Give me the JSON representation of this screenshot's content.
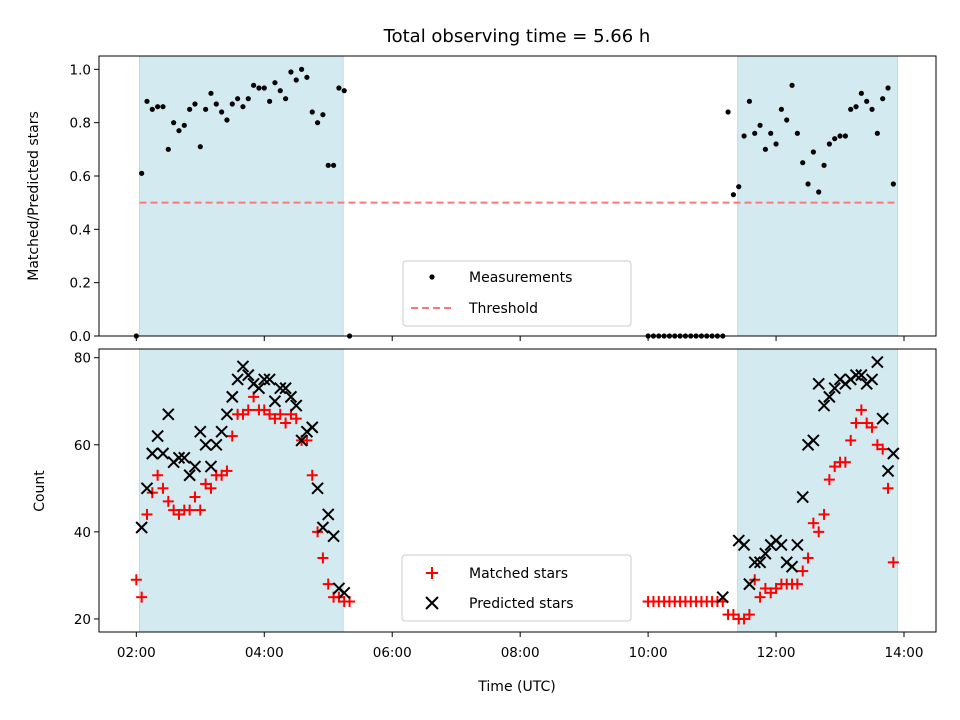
{
  "figure": {
    "title": "Total observing time = 5.66 h"
  },
  "chart_data": [
    {
      "type": "scatter",
      "panel": "top",
      "title": "Total observing time = 5.66 h",
      "xlabel": "",
      "ylabel": "Matched/Predicted stars",
      "xlim": [
        "01:25",
        "14:30"
      ],
      "ylim": [
        0,
        1.05
      ],
      "yticks": [
        0.0,
        0.2,
        0.4,
        0.6,
        0.8,
        1.0
      ],
      "ytick_labels": [
        "0.0",
        "0.2",
        "0.4",
        "0.6",
        "0.8",
        "1.0"
      ],
      "shaded_intervals": [
        [
          "02:03",
          "05:14"
        ],
        [
          "11:24",
          "13:54"
        ]
      ],
      "shade_color": "#d3eaf1",
      "legend": {
        "position": "lower-center",
        "entries": [
          "Measurements",
          "Threshold"
        ]
      },
      "threshold": {
        "name": "Threshold",
        "value": 0.5,
        "x_range": [
          "02:03",
          "13:54"
        ],
        "color": "#ff7777",
        "style": "dashed"
      },
      "series": [
        {
          "name": "Measurements",
          "marker": "dot",
          "color": "#000000",
          "points": [
            [
              "02:00",
              0.0
            ],
            [
              "02:05",
              0.61
            ],
            [
              "02:10",
              0.88
            ],
            [
              "02:15",
              0.85
            ],
            [
              "02:20",
              0.86
            ],
            [
              "02:25",
              0.86
            ],
            [
              "02:30",
              0.7
            ],
            [
              "02:35",
              0.8
            ],
            [
              "02:40",
              0.77
            ],
            [
              "02:45",
              0.79
            ],
            [
              "02:50",
              0.85
            ],
            [
              "02:55",
              0.87
            ],
            [
              "03:00",
              0.71
            ],
            [
              "03:05",
              0.85
            ],
            [
              "03:10",
              0.91
            ],
            [
              "03:15",
              0.87
            ],
            [
              "03:20",
              0.84
            ],
            [
              "03:25",
              0.81
            ],
            [
              "03:30",
              0.87
            ],
            [
              "03:35",
              0.89
            ],
            [
              "03:40",
              0.86
            ],
            [
              "03:45",
              0.89
            ],
            [
              "03:50",
              0.94
            ],
            [
              "03:55",
              0.93
            ],
            [
              "04:00",
              0.93
            ],
            [
              "04:05",
              0.88
            ],
            [
              "04:10",
              0.95
            ],
            [
              "04:15",
              0.92
            ],
            [
              "04:20",
              0.89
            ],
            [
              "04:25",
              0.99
            ],
            [
              "04:30",
              0.96
            ],
            [
              "04:35",
              1.0
            ],
            [
              "04:40",
              0.97
            ],
            [
              "04:45",
              0.84
            ],
            [
              "04:50",
              0.8
            ],
            [
              "04:55",
              0.83
            ],
            [
              "05:00",
              0.64
            ],
            [
              "05:05",
              0.64
            ],
            [
              "05:10",
              0.93
            ],
            [
              "05:15",
              0.92
            ],
            [
              "05:20",
              0.0
            ],
            [
              "10:00",
              0.0
            ],
            [
              "10:05",
              0.0
            ],
            [
              "10:10",
              0.0
            ],
            [
              "10:15",
              0.0
            ],
            [
              "10:20",
              0.0
            ],
            [
              "10:25",
              0.0
            ],
            [
              "10:30",
              0.0
            ],
            [
              "10:35",
              0.0
            ],
            [
              "10:40",
              0.0
            ],
            [
              "10:45",
              0.0
            ],
            [
              "10:50",
              0.0
            ],
            [
              "10:55",
              0.0
            ],
            [
              "11:00",
              0.0
            ],
            [
              "11:05",
              0.0
            ],
            [
              "11:10",
              0.0
            ],
            [
              "11:15",
              0.84
            ],
            [
              "11:20",
              0.53
            ],
            [
              "11:25",
              0.56
            ],
            [
              "11:30",
              0.75
            ],
            [
              "11:35",
              0.88
            ],
            [
              "11:40",
              0.76
            ],
            [
              "11:45",
              0.79
            ],
            [
              "11:50",
              0.7
            ],
            [
              "11:55",
              0.76
            ],
            [
              "12:00",
              0.72
            ],
            [
              "12:05",
              0.85
            ],
            [
              "12:10",
              0.81
            ],
            [
              "12:15",
              0.94
            ],
            [
              "12:20",
              0.76
            ],
            [
              "12:25",
              0.65
            ],
            [
              "12:30",
              0.57
            ],
            [
              "12:35",
              0.69
            ],
            [
              "12:40",
              0.54
            ],
            [
              "12:45",
              0.64
            ],
            [
              "12:50",
              0.72
            ],
            [
              "12:55",
              0.74
            ],
            [
              "13:00",
              0.75
            ],
            [
              "13:05",
              0.75
            ],
            [
              "13:10",
              0.85
            ],
            [
              "13:15",
              0.86
            ],
            [
              "13:20",
              0.91
            ],
            [
              "13:25",
              0.88
            ],
            [
              "13:30",
              0.85
            ],
            [
              "13:35",
              0.76
            ],
            [
              "13:40",
              0.89
            ],
            [
              "13:45",
              0.93
            ],
            [
              "13:50",
              0.57
            ]
          ]
        }
      ]
    },
    {
      "type": "scatter",
      "panel": "bottom",
      "title": "",
      "xlabel": "Time (UTC)",
      "ylabel": "Count",
      "xlim": [
        "01:25",
        "14:30"
      ],
      "ylim": [
        17,
        82
      ],
      "yticks": [
        20,
        40,
        60,
        80
      ],
      "ytick_labels": [
        "20",
        "40",
        "60",
        "80"
      ],
      "xticks": [
        "02:00",
        "04:00",
        "06:00",
        "08:00",
        "10:00",
        "12:00",
        "14:00"
      ],
      "xtick_labels": [
        "02:00",
        "04:00",
        "06:00",
        "08:00",
        "10:00",
        "12:00",
        "14:00"
      ],
      "shaded_intervals": [
        [
          "02:03",
          "05:14"
        ],
        [
          "11:24",
          "13:54"
        ]
      ],
      "shade_color": "#d3eaf1",
      "legend": {
        "position": "lower-center",
        "entries": [
          "Matched stars",
          "Predicted stars"
        ]
      },
      "series": [
        {
          "name": "Matched stars",
          "marker": "plus",
          "color": "#ff0000",
          "points": [
            [
              "02:00",
              29
            ],
            [
              "02:05",
              25
            ],
            [
              "02:10",
              44
            ],
            [
              "02:15",
              49
            ],
            [
              "02:20",
              53
            ],
            [
              "02:25",
              50
            ],
            [
              "02:30",
              47
            ],
            [
              "02:35",
              45
            ],
            [
              "02:40",
              44
            ],
            [
              "02:45",
              45
            ],
            [
              "02:50",
              45
            ],
            [
              "02:55",
              48
            ],
            [
              "03:00",
              45
            ],
            [
              "03:05",
              51
            ],
            [
              "03:10",
              50
            ],
            [
              "03:15",
              53
            ],
            [
              "03:20",
              53
            ],
            [
              "03:25",
              54
            ],
            [
              "03:30",
              62
            ],
            [
              "03:35",
              67
            ],
            [
              "03:40",
              67
            ],
            [
              "03:45",
              68
            ],
            [
              "03:50",
              71
            ],
            [
              "03:55",
              68
            ],
            [
              "04:00",
              68
            ],
            [
              "04:05",
              67
            ],
            [
              "04:10",
              66
            ],
            [
              "04:15",
              67
            ],
            [
              "04:20",
              65
            ],
            [
              "04:25",
              67
            ],
            [
              "04:30",
              66
            ],
            [
              "04:35",
              61
            ],
            [
              "04:40",
              61
            ],
            [
              "04:45",
              53
            ],
            [
              "04:50",
              40
            ],
            [
              "04:55",
              34
            ],
            [
              "05:00",
              28
            ],
            [
              "05:05",
              25
            ],
            [
              "05:10",
              25
            ],
            [
              "05:15",
              24
            ],
            [
              "05:20",
              24
            ],
            [
              "10:00",
              24
            ],
            [
              "10:05",
              24
            ],
            [
              "10:10",
              24
            ],
            [
              "10:15",
              24
            ],
            [
              "10:20",
              24
            ],
            [
              "10:25",
              24
            ],
            [
              "10:30",
              24
            ],
            [
              "10:35",
              24
            ],
            [
              "10:40",
              24
            ],
            [
              "10:45",
              24
            ],
            [
              "10:50",
              24
            ],
            [
              "10:55",
              24
            ],
            [
              "11:00",
              24
            ],
            [
              "11:05",
              24
            ],
            [
              "11:10",
              24
            ],
            [
              "11:15",
              21
            ],
            [
              "11:20",
              21
            ],
            [
              "11:25",
              20
            ],
            [
              "11:30",
              20
            ],
            [
              "11:35",
              21
            ],
            [
              "11:40",
              29
            ],
            [
              "11:45",
              25
            ],
            [
              "11:50",
              27
            ],
            [
              "11:55",
              26
            ],
            [
              "12:00",
              27
            ],
            [
              "12:05",
              28
            ],
            [
              "12:10",
              28
            ],
            [
              "12:15",
              28
            ],
            [
              "12:20",
              28
            ],
            [
              "12:25",
              31
            ],
            [
              "12:30",
              34
            ],
            [
              "12:35",
              42
            ],
            [
              "12:40",
              40
            ],
            [
              "12:45",
              44
            ],
            [
              "12:50",
              52
            ],
            [
              "12:55",
              55
            ],
            [
              "13:00",
              56
            ],
            [
              "13:05",
              56
            ],
            [
              "13:10",
              61
            ],
            [
              "13:15",
              65
            ],
            [
              "13:20",
              68
            ],
            [
              "13:25",
              65
            ],
            [
              "13:30",
              64
            ],
            [
              "13:35",
              60
            ],
            [
              "13:40",
              59
            ],
            [
              "13:45",
              50
            ],
            [
              "13:50",
              33
            ]
          ]
        },
        {
          "name": "Predicted stars",
          "marker": "x",
          "color": "#000000",
          "points": [
            [
              "02:05",
              41
            ],
            [
              "02:10",
              50
            ],
            [
              "02:15",
              58
            ],
            [
              "02:20",
              62
            ],
            [
              "02:25",
              58
            ],
            [
              "02:30",
              67
            ],
            [
              "02:35",
              56
            ],
            [
              "02:40",
              57
            ],
            [
              "02:45",
              57
            ],
            [
              "02:50",
              53
            ],
            [
              "02:55",
              55
            ],
            [
              "03:00",
              63
            ],
            [
              "03:05",
              60
            ],
            [
              "03:10",
              55
            ],
            [
              "03:15",
              60
            ],
            [
              "03:20",
              63
            ],
            [
              "03:25",
              67
            ],
            [
              "03:30",
              71
            ],
            [
              "03:35",
              75
            ],
            [
              "03:40",
              78
            ],
            [
              "03:45",
              76
            ],
            [
              "03:50",
              74
            ],
            [
              "03:55",
              73
            ],
            [
              "04:00",
              75
            ],
            [
              "04:05",
              75
            ],
            [
              "04:10",
              70
            ],
            [
              "04:15",
              73
            ],
            [
              "04:20",
              73
            ],
            [
              "04:25",
              71
            ],
            [
              "04:30",
              69
            ],
            [
              "04:35",
              61
            ],
            [
              "04:40",
              63
            ],
            [
              "04:45",
              64
            ],
            [
              "04:50",
              50
            ],
            [
              "04:55",
              41
            ],
            [
              "05:00",
              44
            ],
            [
              "05:05",
              39
            ],
            [
              "05:10",
              27
            ],
            [
              "05:15",
              26
            ],
            [
              "11:10",
              25
            ],
            [
              "11:25",
              38
            ],
            [
              "11:30",
              37
            ],
            [
              "11:35",
              28
            ],
            [
              "11:40",
              33
            ],
            [
              "11:45",
              33
            ],
            [
              "11:50",
              35
            ],
            [
              "11:55",
              37
            ],
            [
              "12:00",
              38
            ],
            [
              "12:05",
              37
            ],
            [
              "12:10",
              33
            ],
            [
              "12:15",
              32
            ],
            [
              "12:20",
              37
            ],
            [
              "12:25",
              48
            ],
            [
              "12:30",
              60
            ],
            [
              "12:35",
              61
            ],
            [
              "12:40",
              74
            ],
            [
              "12:45",
              69
            ],
            [
              "12:50",
              71
            ],
            [
              "12:55",
              73
            ],
            [
              "13:00",
              75
            ],
            [
              "13:05",
              74
            ],
            [
              "13:10",
              75
            ],
            [
              "13:15",
              76
            ],
            [
              "13:20",
              76
            ],
            [
              "13:25",
              74
            ],
            [
              "13:30",
              75
            ],
            [
              "13:35",
              79
            ],
            [
              "13:40",
              66
            ],
            [
              "13:45",
              54
            ],
            [
              "13:50",
              58
            ]
          ]
        }
      ]
    }
  ]
}
